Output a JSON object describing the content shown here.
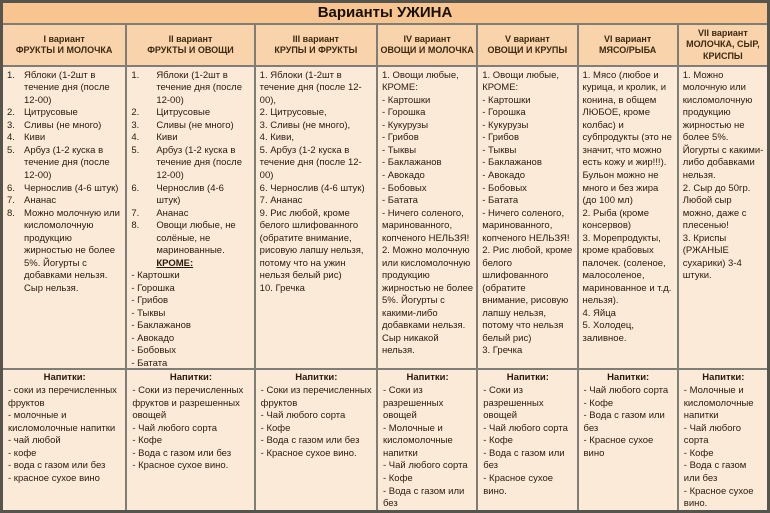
{
  "title": "Варианты УЖИНА",
  "colors": {
    "title_bg": "#f8c48f",
    "header_bg": "#f9d3ab",
    "cell_bg": "#fcead9",
    "border": "#7f7e76"
  },
  "columns": [
    {
      "variant": "I вариант",
      "category": "ФРУКТЫ И МОЛОЧКА",
      "items": [
        {
          "n": "1.",
          "t": "Яблоки  (1-2шт в течение дня (после 12-00)"
        },
        {
          "n": "2.",
          "t": "Цитрусовые"
        },
        {
          "n": "3.",
          "t": "Сливы (не много)"
        },
        {
          "n": "4.",
          "t": "Киви"
        },
        {
          "n": "5.",
          "t": "Арбуз  (1-2 куска в течение дня  (после 12-00)"
        },
        {
          "n": "6.",
          "t": "Чернослив (4-6 штук)"
        },
        {
          "n": "7.",
          "t": "Ананас"
        },
        {
          "n": "8.",
          "t": "Можно молочную или кисломолочную продукцию жирностью не более 5%. Йогурты с добавками нельзя. Сыр нельзя."
        }
      ],
      "drinks_label": "Напитки:",
      "drinks": [
        "- соки из перечисленных фруктов",
        "- молочные и кисломолочные напитки",
        "- чай любой",
        "- кофе",
        "- вода с газом или без",
        "- красное сухое вино"
      ]
    },
    {
      "variant": "II вариант",
      "category": "ФРУКТЫ И ОВОЩИ",
      "items": [
        {
          "n": "1.",
          "t": "Яблоки (1-2шт в течение дня (после 12-00)"
        },
        {
          "n": "2.",
          "t": "Цитрусовые"
        },
        {
          "n": "3.",
          "t": "Сливы (не много)"
        },
        {
          "n": "4.",
          "t": "Киви"
        },
        {
          "n": "5.",
          "t": "Арбуз  (1-2 куска в течение дня (после 12-00)"
        },
        {
          "n": "6.",
          "t": "Чернослив (4-6 штук)"
        },
        {
          "n": "7.",
          "t": "Ананас"
        },
        {
          "n": "8.",
          "t": "Овощи любые, не солёные, не маринованные."
        },
        {
          "t": "КРОМЕ:",
          "s": "kro"
        },
        {
          "t": "- Картошки"
        },
        {
          "t": "- Горошка"
        },
        {
          "t": "- Грибов"
        },
        {
          "t": "- Тыквы"
        },
        {
          "t": "- Баклажанов"
        },
        {
          "t": "- Авокадо"
        },
        {
          "t": "- Бобовых"
        },
        {
          "t": "- Батата"
        },
        {
          "t": "- Кукурузы"
        }
      ],
      "drinks_label": "Напитки:",
      "drinks": [
        "- Соки из перечисленных фруктов и разрешенных овощей",
        "- Чай любого сорта",
        "- Кофе",
        "- Вода с газом или без",
        "- Красное сухое вино."
      ]
    },
    {
      "variant": "III вариант",
      "category": "КРУПЫ И ФРУКТЫ",
      "items": [
        {
          "t": "1. Яблоки (1-2шт в течение дня (после 12-00),"
        },
        {
          "t": "2. Цитрусовые,"
        },
        {
          "t": "3. Сливы (не много),"
        },
        {
          "t": "4. Киви,"
        },
        {
          "t": "5. Арбуз (1-2 куска в течение дня (после 12-00)"
        },
        {
          "t": "6. Чернослив (4-6 штук)"
        },
        {
          "t": "7. Ананас"
        },
        {
          "t": "9. Рис любой, кроме белого шлифованного (обратите внимание, рисовую лапшу нельзя, потому что на ужин нельзя белый рис)"
        },
        {
          "t": "10. Гречка"
        }
      ],
      "drinks_label": "Напитки:",
      "drinks": [
        "- Соки из перечисленных фруктов",
        "- Чай любого сорта",
        "- Кофе",
        "- Вода с газом или без",
        "- Красное сухое вино."
      ]
    },
    {
      "variant": "IV вариант",
      "category": "ОВОЩИ И МОЛОЧКА",
      "items": [
        {
          "t": "1. Овощи любые, КРОМЕ:"
        },
        {
          "t": "- Картошки"
        },
        {
          "t": "- Горошка"
        },
        {
          "t": "- Кукурузы"
        },
        {
          "t": "- Грибов"
        },
        {
          "t": "- Тыквы"
        },
        {
          "t": "- Баклажанов"
        },
        {
          "t": "- Авокадо"
        },
        {
          "t": "- Бобовых"
        },
        {
          "t": "- Батата"
        },
        {
          "t": "- Ничего соленого, маринованного, копченого НЕЛЬЗЯ!"
        },
        {
          "t": "2. Можно молочную или кисломолочную продукцию жирностью не более 5%. Йогурты с какими-либо добавками нельзя. Сыр никакой нельзя."
        }
      ],
      "drinks_label": "Напитки:",
      "drinks": [
        "- Соки из разрешенных овощей",
        "- Молочные и кисломолочные напитки",
        "- Чай любого сорта",
        "- Кофе",
        "- Вода с газом или без",
        "- Красное сухое вино."
      ]
    },
    {
      "variant": "V вариант",
      "category": "ОВОЩИ И КРУПЫ",
      "items": [
        {
          "t": "1. Овощи любые, КРОМЕ:"
        },
        {
          "t": "- Картошки"
        },
        {
          "t": "- Горошка"
        },
        {
          "t": "- Кукурузы"
        },
        {
          "t": "- Грибов"
        },
        {
          "t": "- Тыквы"
        },
        {
          "t": "- Баклажанов"
        },
        {
          "t": "- Авокадо"
        },
        {
          "t": "- Бобовых"
        },
        {
          "t": "- Батата"
        },
        {
          "t": "- Ничего соленого, маринованного, копченого НЕЛЬЗЯ!"
        },
        {
          "t": "2. Рис любой, кроме белого шлифованного (обратите внимание, рисовую лапшу нельзя, потому что нельзя белый рис)"
        },
        {
          "t": "3. Гречка"
        }
      ],
      "drinks_label": "Напитки:",
      "drinks": [
        "- Соки из разрешенных овощей",
        "- Чай любого сорта",
        "- Кофе",
        "- Вода с газом или без",
        "- Красное сухое вино."
      ]
    },
    {
      "variant": "VI вариант",
      "category": "МЯСО/РЫБА",
      "items": [
        {
          "t": "1. Мясо (любое и курица, и кролик, и конина, в общем ЛЮБОЕ, кроме колбас) и субпродукты (это не значит, что можно есть кожу и жир!!!). Бульон можно не много и без жира (до 100 мл)"
        },
        {
          "t": "2. Рыба (кроме консервов)"
        },
        {
          "t": "3. Морепродукты, кроме крабовых палочек. (соленое, малосоленое, маринованное и т.д. нельзя)."
        },
        {
          "t": "4. Яйца"
        },
        {
          "t": "5. Холодец, заливное."
        }
      ],
      "drinks_label": "Напитки:",
      "drinks": [
        "- Чай любого сорта",
        "- Кофе",
        "- Вода с газом или без",
        "- Красное сухое вино"
      ]
    },
    {
      "variant": "VII вариант",
      "category": "МОЛОЧКА, СЫР, КРИСПЫ",
      "items": [
        {
          "t": "1. Можно молочную или кисломолочную продукцию жирностью не более 5%. Йогурты с какими-либо добавками нельзя."
        },
        {
          "t": "2. Сыр до 50гр. Любой сыр можно, даже с плесенью!"
        },
        {
          "t": "3. Криспы (РЖАНЫЕ сухарики) 3-4 штуки."
        }
      ],
      "drinks_label": "Напитки:",
      "drinks": [
        "- Молочные и кисломолочные напитки",
        "- Чай любого сорта",
        "- Кофе",
        "- Вода с газом или без",
        "- Красное сухое вино."
      ]
    }
  ]
}
